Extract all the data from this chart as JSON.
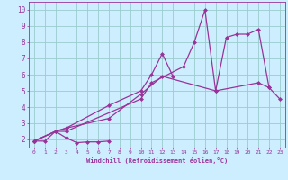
{
  "xlabel": "Windchill (Refroidissement éolien,°C)",
  "background_color": "#cceeff",
  "grid_color": "#99cccc",
  "line_color": "#993399",
  "xlim_min": -0.5,
  "xlim_max": 23.5,
  "ylim_min": 1.5,
  "ylim_max": 10.5,
  "line1_x": [
    0,
    1,
    2,
    3,
    4,
    5,
    6,
    7
  ],
  "line1_y": [
    1.9,
    1.9,
    2.5,
    2.1,
    1.8,
    1.85,
    1.85,
    1.9
  ],
  "line2_x": [
    0,
    2,
    3,
    7,
    10,
    12,
    17,
    21,
    22
  ],
  "line2_y": [
    1.9,
    2.5,
    2.7,
    3.3,
    4.8,
    5.9,
    5.0,
    5.5,
    5.2
  ],
  "line3_x": [
    0,
    2,
    3,
    7,
    10,
    11,
    12,
    13
  ],
  "line3_y": [
    1.9,
    2.5,
    2.7,
    4.1,
    5.0,
    6.0,
    7.3,
    5.9
  ],
  "line4_x": [
    0,
    2,
    3,
    10,
    11,
    14,
    15,
    16,
    17,
    18,
    19,
    20,
    21,
    22,
    23
  ],
  "line4_y": [
    1.9,
    2.5,
    2.5,
    4.5,
    5.5,
    6.5,
    8.0,
    10.0,
    5.0,
    8.3,
    8.5,
    8.5,
    8.8,
    5.2,
    4.5
  ],
  "marker_size": 2.5,
  "line_width": 0.9,
  "xlabel_fontsize": 5.0,
  "tick_fontsize": 4.5,
  "ytick_fontsize": 5.5
}
